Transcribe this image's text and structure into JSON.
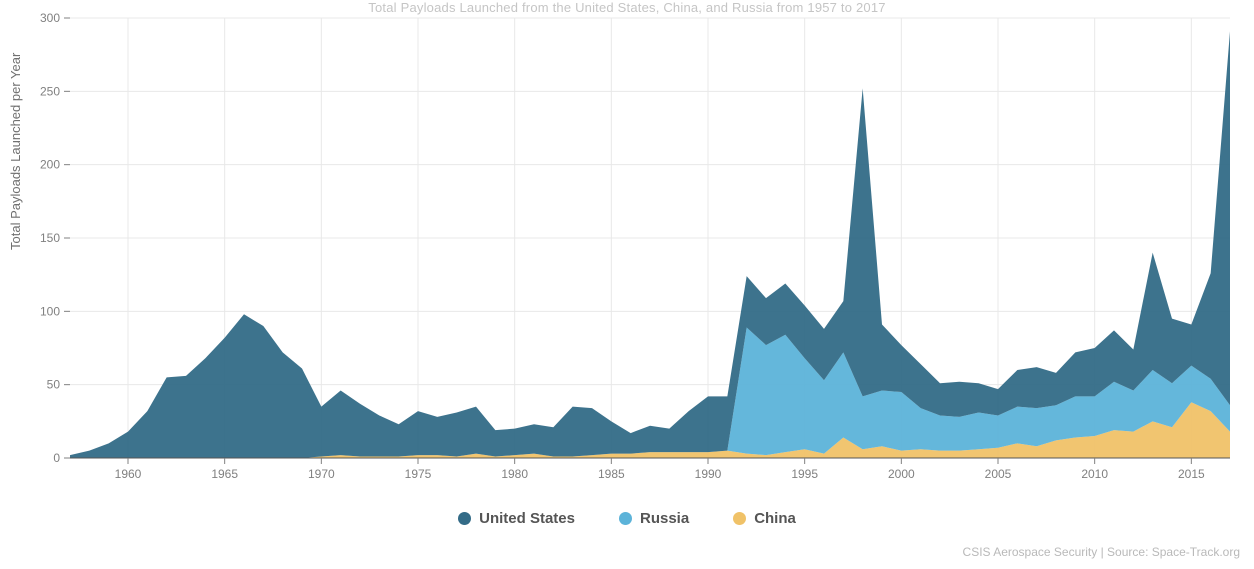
{
  "title": "Total Payloads Launched from the United States, China, and Russia from 1957 to 2017",
  "ylabel": "Total Payloads Launched per Year",
  "credit": "CSIS Aerospace Security | Source: Space-Track.org",
  "chart": {
    "type": "area",
    "xlim": [
      1957,
      2017
    ],
    "ylim": [
      0,
      300
    ],
    "ytick_step": 50,
    "xtick_step": 5,
    "xtick_start": 1960,
    "background_color": "#ffffff",
    "grid_color": "#e8e8e8",
    "axis_color": "#c0c0c0",
    "tick_font_size": 12,
    "tick_color": "#808080",
    "series": [
      {
        "name": "China",
        "label": "China",
        "color": "#f0c268",
        "values": [
          0,
          0,
          0,
          0,
          0,
          0,
          0,
          0,
          0,
          0,
          0,
          0,
          0,
          1,
          2,
          1,
          1,
          1,
          2,
          2,
          1,
          3,
          1,
          2,
          3,
          1,
          1,
          2,
          3,
          3,
          4,
          4,
          4,
          4,
          5,
          3,
          2,
          4,
          6,
          3,
          14,
          6,
          8,
          5,
          6,
          5,
          5,
          6,
          7,
          10,
          8,
          12,
          14,
          15,
          19,
          18,
          25,
          21,
          38,
          32,
          18
        ]
      },
      {
        "name": "Russia",
        "label": "Russia",
        "color": "#5cb3d9",
        "values": [
          0,
          0,
          0,
          0,
          0,
          0,
          0,
          0,
          0,
          0,
          0,
          0,
          0,
          0,
          0,
          0,
          0,
          0,
          0,
          0,
          0,
          0,
          0,
          0,
          0,
          0,
          0,
          0,
          0,
          0,
          0,
          0,
          0,
          0,
          0,
          86,
          75,
          80,
          62,
          50,
          58,
          36,
          38,
          40,
          28,
          24,
          23,
          25,
          22,
          25,
          26,
          24,
          28,
          27,
          33,
          28,
          35,
          30,
          25,
          22,
          18
        ]
      },
      {
        "name": "UnitedStates",
        "label": "United States",
        "color": "#336b87",
        "values": [
          2,
          5,
          10,
          18,
          32,
          55,
          56,
          68,
          82,
          98,
          90,
          72,
          61,
          34,
          44,
          36,
          28,
          22,
          30,
          26,
          30,
          32,
          18,
          18,
          20,
          20,
          34,
          32,
          22,
          14,
          18,
          16,
          28,
          38,
          37,
          35,
          32,
          35,
          36,
          35,
          35,
          210,
          45,
          32,
          30,
          22,
          24,
          20,
          18,
          25,
          28,
          22,
          30,
          33,
          35,
          28,
          80,
          44,
          28,
          72,
          255
        ]
      }
    ],
    "x_start": 1957
  },
  "legend": {
    "items": [
      {
        "label": "United States",
        "color": "#336b87"
      },
      {
        "label": "Russia",
        "color": "#5cb3d9"
      },
      {
        "label": "China",
        "color": "#f0c268"
      }
    ]
  },
  "title_color": "#c5c5c5",
  "title_fontsize": 13,
  "ylabel_color": "#707070",
  "ylabel_fontsize": 13,
  "legend_fontsize": 15,
  "legend_color": "#555555",
  "credit_color": "#b9b9b9",
  "credit_fontsize": 12
}
